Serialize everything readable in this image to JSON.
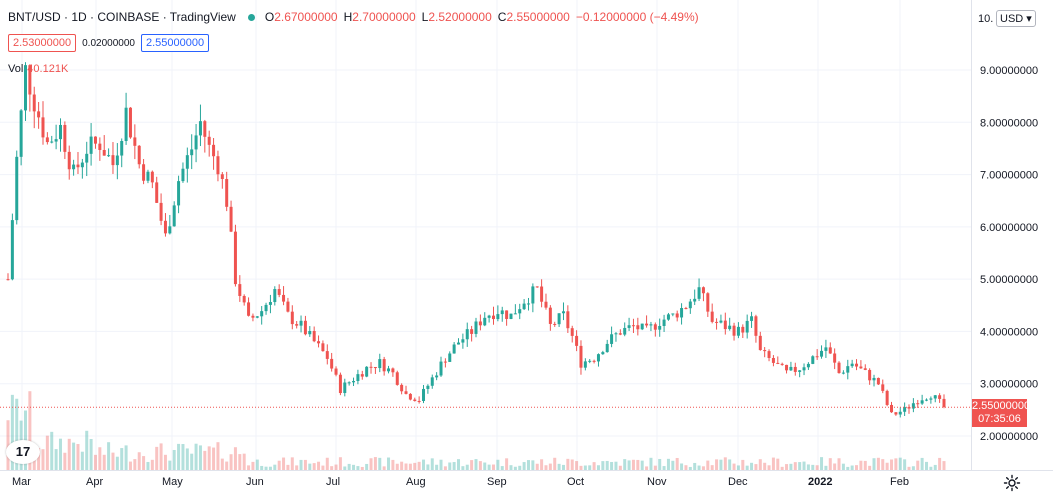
{
  "header": {
    "symbol": "BNT/USD · 1D · COINBASE · TradingView",
    "ohlc": [
      {
        "k": "O",
        "v": "2.67000000"
      },
      {
        "k": "H",
        "v": "2.70000000"
      },
      {
        "k": "L",
        "v": "2.52000000"
      },
      {
        "k": "C",
        "v": "2.55000000"
      },
      {
        "k": "",
        "v": "−0.12000000 (−4.49%)"
      }
    ],
    "bid": "2.53000000",
    "spread": "0.02000000",
    "ask": "2.55000000",
    "vol_label": "Vol",
    "vol_value": "40.121K"
  },
  "axis": {
    "currency": "USD",
    "top_label": "10.",
    "price_labels": [
      "9.00000000",
      "8.00000000",
      "7.00000000",
      "6.00000000",
      "5.00000000",
      "4.00000000",
      "3.00000000",
      "2.00000000"
    ],
    "last_price": "2.55000000",
    "countdown": "07:35:06",
    "time_labels": [
      "Mar",
      "Apr",
      "May",
      "Jun",
      "Jul",
      "Aug",
      "Sep",
      "Oct",
      "Nov",
      "Dec",
      "2022",
      "Feb"
    ]
  },
  "logo_text": "17",
  "colors": {
    "up": "#26a69a",
    "down": "#ef5350",
    "grid": "#f0f3fa"
  },
  "chart_data": {
    "type": "candlestick",
    "title": "BNT/USD · 1D · COINBASE",
    "ylim": [
      1.7,
      10.2
    ],
    "anchors": [
      [
        0,
        5.0
      ],
      [
        2,
        7.3
      ],
      [
        4,
        9.0
      ],
      [
        6,
        8.4
      ],
      [
        9,
        7.6
      ],
      [
        12,
        7.9
      ],
      [
        15,
        7.0
      ],
      [
        18,
        7.5
      ],
      [
        21,
        7.6
      ],
      [
        24,
        7.2
      ],
      [
        27,
        8.2
      ],
      [
        30,
        7.2
      ],
      [
        33,
        6.8
      ],
      [
        36,
        5.8
      ],
      [
        39,
        6.9
      ],
      [
        42,
        7.5
      ],
      [
        44,
        8.0
      ],
      [
        46,
        7.5
      ],
      [
        48,
        7.2
      ],
      [
        50,
        6.5
      ],
      [
        52,
        5.0
      ],
      [
        55,
        4.2
      ],
      [
        58,
        4.4
      ],
      [
        61,
        4.8
      ],
      [
        64,
        4.3
      ],
      [
        67,
        4.1
      ],
      [
        70,
        3.8
      ],
      [
        73,
        3.5
      ],
      [
        76,
        2.9
      ],
      [
        79,
        3.1
      ],
      [
        82,
        3.3
      ],
      [
        85,
        3.4
      ],
      [
        88,
        3.2
      ],
      [
        91,
        2.8
      ],
      [
        94,
        2.7
      ],
      [
        97,
        3.1
      ],
      [
        100,
        3.5
      ],
      [
        103,
        3.8
      ],
      [
        106,
        4.0
      ],
      [
        109,
        4.3
      ],
      [
        112,
        4.4
      ],
      [
        115,
        4.3
      ],
      [
        118,
        4.6
      ],
      [
        121,
        4.8
      ],
      [
        124,
        4.1
      ],
      [
        127,
        4.3
      ],
      [
        129,
        3.9
      ],
      [
        131,
        3.4
      ],
      [
        134,
        3.5
      ],
      [
        137,
        3.8
      ],
      [
        140,
        4.0
      ],
      [
        143,
        4.1
      ],
      [
        146,
        4.0
      ],
      [
        149,
        4.2
      ],
      [
        152,
        4.3
      ],
      [
        155,
        4.5
      ],
      [
        158,
        4.8
      ],
      [
        161,
        4.2
      ],
      [
        164,
        4.1
      ],
      [
        167,
        4.0
      ],
      [
        170,
        4.2
      ],
      [
        172,
        3.6
      ],
      [
        175,
        3.4
      ],
      [
        178,
        3.2
      ],
      [
        181,
        3.3
      ],
      [
        184,
        3.5
      ],
      [
        187,
        3.7
      ],
      [
        190,
        3.2
      ],
      [
        193,
        3.4
      ],
      [
        196,
        3.2
      ],
      [
        199,
        3.0
      ],
      [
        202,
        2.4
      ],
      [
        205,
        2.5
      ],
      [
        208,
        2.7
      ],
      [
        211,
        2.8
      ],
      [
        214,
        2.55
      ]
    ],
    "series": [
      {
        "name": "BNT/USD",
        "last": 2.55,
        "last_change": -0.12
      }
    ],
    "volume": {
      "last": "40.121K"
    }
  }
}
